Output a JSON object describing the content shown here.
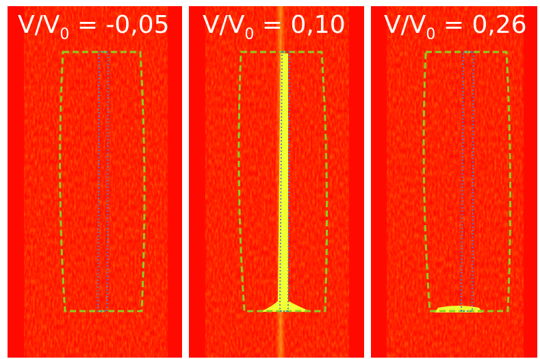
{
  "panels": [
    {
      "label": {
        "text": "V/V",
        "subscript": "0",
        "value": " = -0,05"
      }
    },
    {
      "label": {
        "text": "V/V",
        "subscript": "0",
        "value": " = 0,10"
      }
    },
    {
      "label": {
        "text": "V/V",
        "subscript": "0",
        "value": " = 0,26"
      }
    }
  ]
}
